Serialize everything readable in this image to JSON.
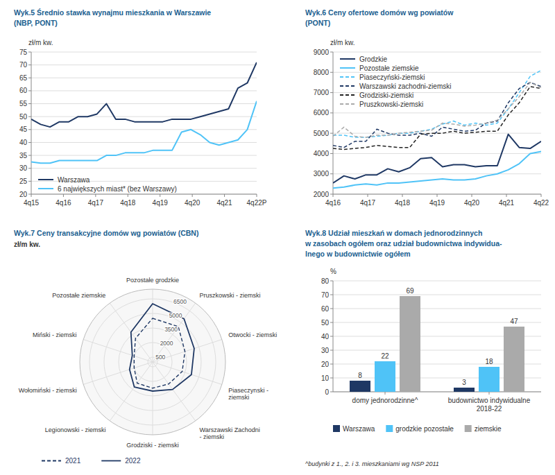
{
  "chart_data": [
    {
      "type": "line",
      "title": "Wyk.5 Średnio stawka wynajmu mieszkania w Warszawie",
      "subtitle": "(NBP, PONT)",
      "y_label": "zł/m kw.",
      "x": [
        0,
        0.2916666666666667,
        0.5833333333333334,
        0.875,
        1.1666666666666667,
        1.4583333333333333,
        1.75,
        2.0416666666666665,
        2.3333333333333335,
        2.625,
        2.9166666666666665,
        3.2083333333333335,
        3.5,
        3.7916666666666665,
        4.083333333333333,
        4.375,
        4.666666666666667,
        4.958333333333333,
        5.25,
        5.541666666666667,
        5.833333333333333,
        6.125,
        6.416666666666667,
        6.708333333333333,
        7
      ],
      "xlim": [
        0,
        7
      ],
      "xticks": [
        {
          "value": 0,
          "label": "4q15"
        },
        {
          "value": 1,
          "label": "4q16"
        },
        {
          "value": 2,
          "label": "4q17"
        },
        {
          "value": 3,
          "label": "4q18"
        },
        {
          "value": 4,
          "label": "4q19"
        },
        {
          "value": 5,
          "label": "4q20"
        },
        {
          "value": 6,
          "label": "4q21"
        },
        {
          "value": 7,
          "label": "4q22P"
        }
      ],
      "ylim": [
        20,
        75
      ],
      "yticks": [
        20,
        25,
        30,
        35,
        40,
        45,
        50,
        55,
        60,
        65,
        70,
        75
      ],
      "grid": true,
      "legend": "lower left",
      "series": [
        {
          "name": "Warszawa",
          "color": "#1f3864",
          "values": [
            49,
            47,
            46,
            48,
            48,
            50,
            50,
            51,
            55,
            49,
            49,
            48,
            48,
            48,
            48,
            49,
            49,
            49,
            50,
            51,
            52,
            53,
            61,
            63,
            71
          ]
        },
        {
          "name": "6 największych miast* (bez Warszawy)",
          "color": "#4fc3f7",
          "values": [
            32.5,
            32,
            32,
            33,
            33,
            33,
            33,
            33,
            35,
            35,
            36,
            36,
            36,
            37,
            37,
            37,
            44,
            45,
            43,
            40,
            39,
            40,
            41,
            45,
            56
          ]
        }
      ]
    },
    {
      "type": "line",
      "title": "Wyk.6 Ceny ofertowe domów wg powiatów",
      "subtitle": "(PONT)",
      "y_label": "zł/m kw.",
      "x": [
        0,
        0.3157894736842105,
        0.631578947368421,
        0.9473684210526315,
        1.263157894736842,
        1.5789473684210527,
        1.894736842105263,
        2.210526315789474,
        2.526315789473684,
        2.8421052631578947,
        3.1578947368421053,
        3.473684210526316,
        3.789473684210526,
        4.105263157894737,
        4.421052631578948,
        4.7368421052631575,
        5.052631578947368,
        5.368421052631579,
        5.684210526315789,
        6
      ],
      "xlim": [
        0,
        6
      ],
      "xticks": [
        {
          "value": 0,
          "label": "4q16"
        },
        {
          "value": 1,
          "label": "4q17"
        },
        {
          "value": 2,
          "label": "4q18"
        },
        {
          "value": 3,
          "label": "4q19"
        },
        {
          "value": 4,
          "label": "4q20"
        },
        {
          "value": 5,
          "label": "4q21"
        },
        {
          "value": 6,
          "label": "4q22"
        }
      ],
      "ylim": [
        2000,
        9000
      ],
      "yticks": [
        2000,
        3000,
        4000,
        5000,
        6000,
        7000,
        8000,
        9000
      ],
      "grid": true,
      "legend": "upper left",
      "series": [
        {
          "name": "Grodzkie",
          "color": "#1f3864",
          "line_style": "solid",
          "values": [
            2550,
            2900,
            2750,
            2950,
            2950,
            3250,
            3100,
            3300,
            3750,
            3800,
            3350,
            3450,
            3450,
            3350,
            3400,
            3400,
            4950,
            4300,
            4250,
            4600
          ]
        },
        {
          "name": "Pozostałe ziemskie",
          "color": "#4fc3f7",
          "line_style": "solid",
          "values": [
            2300,
            2350,
            2450,
            2500,
            2450,
            2550,
            2550,
            2600,
            2650,
            2700,
            2750,
            2700,
            2700,
            2750,
            2900,
            3000,
            3200,
            3500,
            4000,
            4100
          ]
        },
        {
          "name": "Piaseczyński-ziemski",
          "color": "#4fc3f7",
          "line_style": "dashed",
          "values": [
            4900,
            4900,
            4800,
            4800,
            4850,
            4900,
            5000,
            5000,
            5100,
            5200,
            5450,
            5600,
            5400,
            5500,
            5400,
            5500,
            6200,
            7000,
            7800,
            8100
          ]
        },
        {
          "name": "Warszawski zachodni-ziemski",
          "color": "#1f3864",
          "line_style": "dashed",
          "values": [
            4400,
            4300,
            4600,
            4600,
            5200,
            5000,
            4900,
            4900,
            5000,
            4850,
            5300,
            5200,
            5100,
            5150,
            5500,
            5600,
            6500,
            7200,
            7500,
            7300
          ]
        },
        {
          "name": "Grodziski-ziemski",
          "color": "#222222",
          "line_style": "dashed",
          "values": [
            4250,
            4200,
            4250,
            4300,
            4400,
            4350,
            4300,
            4300,
            4950,
            5000,
            5000,
            5100,
            5000,
            5050,
            5100,
            5100,
            5900,
            6500,
            7300,
            7200
          ]
        },
        {
          "name": "Pruszkowski-ziemski",
          "color": "#aaaaaa",
          "line_style": "dashed",
          "values": [
            4850,
            5300,
            4850,
            4800,
            4900,
            4900,
            5000,
            5050,
            5100,
            5150,
            5500,
            5450,
            5350,
            5400,
            5500,
            5650,
            6200,
            6800,
            7500,
            7250
          ]
        }
      ]
    },
    {
      "type": "radar",
      "title": "Wyk.7 Ceny transakcyjne domów wg powiatów (CBN)",
      "y_label": "zł/m kw.",
      "categories": [
        "Pozostałe grodzkie",
        "Pruszkowski - ziemski",
        "Otwocki - ziemski",
        "Piaseczynski -\nziemski",
        "Warszawski Zachodni\n- ziemski",
        "Grodziski - ziemski",
        "Legionowski - ziemski",
        "Wołomiński - ziemski",
        "Miński - ziemski",
        "Pozostałe ziemskie"
      ],
      "ylim": [
        0,
        7500
      ],
      "yticks": [
        500,
        2000,
        3500,
        5000,
        6500
      ],
      "grid": true,
      "legend": "bottom",
      "series": [
        {
          "name": "2021",
          "color": "#1f3864",
          "line_style": "dashed",
          "values": [
            4500,
            4500,
            3500,
            3200,
            2800,
            2700,
            2700,
            2000,
            2000,
            3000
          ]
        },
        {
          "name": "2022",
          "color": "#1f3864",
          "line_style": "solid",
          "values": [
            6000,
            5500,
            4500,
            4200,
            3500,
            3000,
            3200,
            2500,
            2200,
            3800
          ]
        }
      ]
    },
    {
      "type": "bar",
      "title": [
        "Wyk.8 Udział mieszkań w domach jednorodzinnych",
        "w zasobach ogółem oraz udział budownictwa indywidua-",
        "lnego w budownictwie ogółem"
      ],
      "y_label": "%",
      "categories": [
        "domy jednorodzinne^",
        "budownictwo indywidualne\n2018-22"
      ],
      "ylim": [
        0,
        80
      ],
      "yticks": [
        0,
        10,
        20,
        30,
        40,
        50,
        60,
        70,
        80
      ],
      "grid": true,
      "legend": "bottom",
      "data_labels": true,
      "annotations": [
        "^budynki z 1., 2. i 3. mieszkaniami wg NSP 2011"
      ],
      "series": [
        {
          "name": "Warszawa",
          "color": "#1f3864",
          "values": [
            8,
            3
          ]
        },
        {
          "name": "grodzkie pozostałe",
          "color": "#4fc3f7",
          "values": [
            22,
            18
          ]
        },
        {
          "name": "ziemskie",
          "color": "#aaaaaa",
          "values": [
            69,
            47
          ]
        }
      ]
    }
  ]
}
